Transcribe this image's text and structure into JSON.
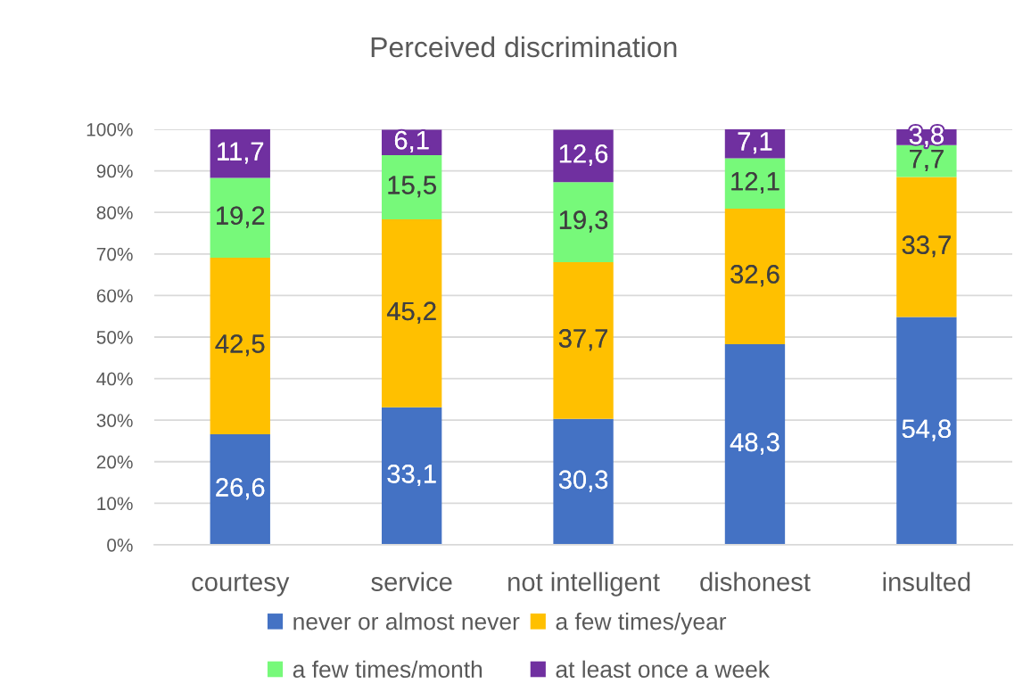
{
  "chart_data": {
    "type": "bar",
    "title": "Perceived discrimination",
    "stacked": true,
    "categories": [
      "courtesy",
      "service",
      "not intelligent",
      "dishonest",
      "insulted"
    ],
    "series": [
      {
        "name": "never or almost never",
        "color": "#4472c4",
        "values": [
          26.6,
          33.1,
          30.3,
          48.3,
          54.8
        ],
        "value_labels": [
          "26,6",
          "33,1",
          "30,3",
          "48,3",
          "54,8"
        ]
      },
      {
        "name": "a few times/year",
        "color": "#ffc000",
        "values": [
          42.5,
          45.2,
          37.7,
          32.6,
          33.7
        ],
        "value_labels": [
          "42,5",
          "45,2",
          "37,7",
          "32,6",
          "33,7"
        ]
      },
      {
        "name": "a few times/month",
        "color": "#77f97a",
        "values": [
          19.2,
          15.5,
          19.3,
          12.1,
          7.7
        ],
        "value_labels": [
          "19,2",
          "15,5",
          "19,3",
          "12,1",
          "7,7"
        ]
      },
      {
        "name": "at least once a week",
        "color": "#7030a0",
        "values": [
          11.7,
          6.1,
          12.6,
          7.1,
          3.8
        ],
        "value_labels": [
          "11,7",
          "6,1",
          "12,6",
          "7,1",
          "3,8"
        ]
      }
    ],
    "ylim": [
      0,
      100
    ],
    "yticks": [
      {
        "value": 0,
        "label": "0%"
      },
      {
        "value": 10,
        "label": "10%"
      },
      {
        "value": 20,
        "label": "20%"
      },
      {
        "value": 30,
        "label": "30%"
      },
      {
        "value": 40,
        "label": "40%"
      },
      {
        "value": 50,
        "label": "50%"
      },
      {
        "value": 60,
        "label": "60%"
      },
      {
        "value": 70,
        "label": "70%"
      },
      {
        "value": 80,
        "label": "80%"
      },
      {
        "value": 90,
        "label": "90%"
      },
      {
        "value": 100,
        "label": "100%"
      }
    ],
    "grid": "y",
    "legend": "bottom"
  }
}
